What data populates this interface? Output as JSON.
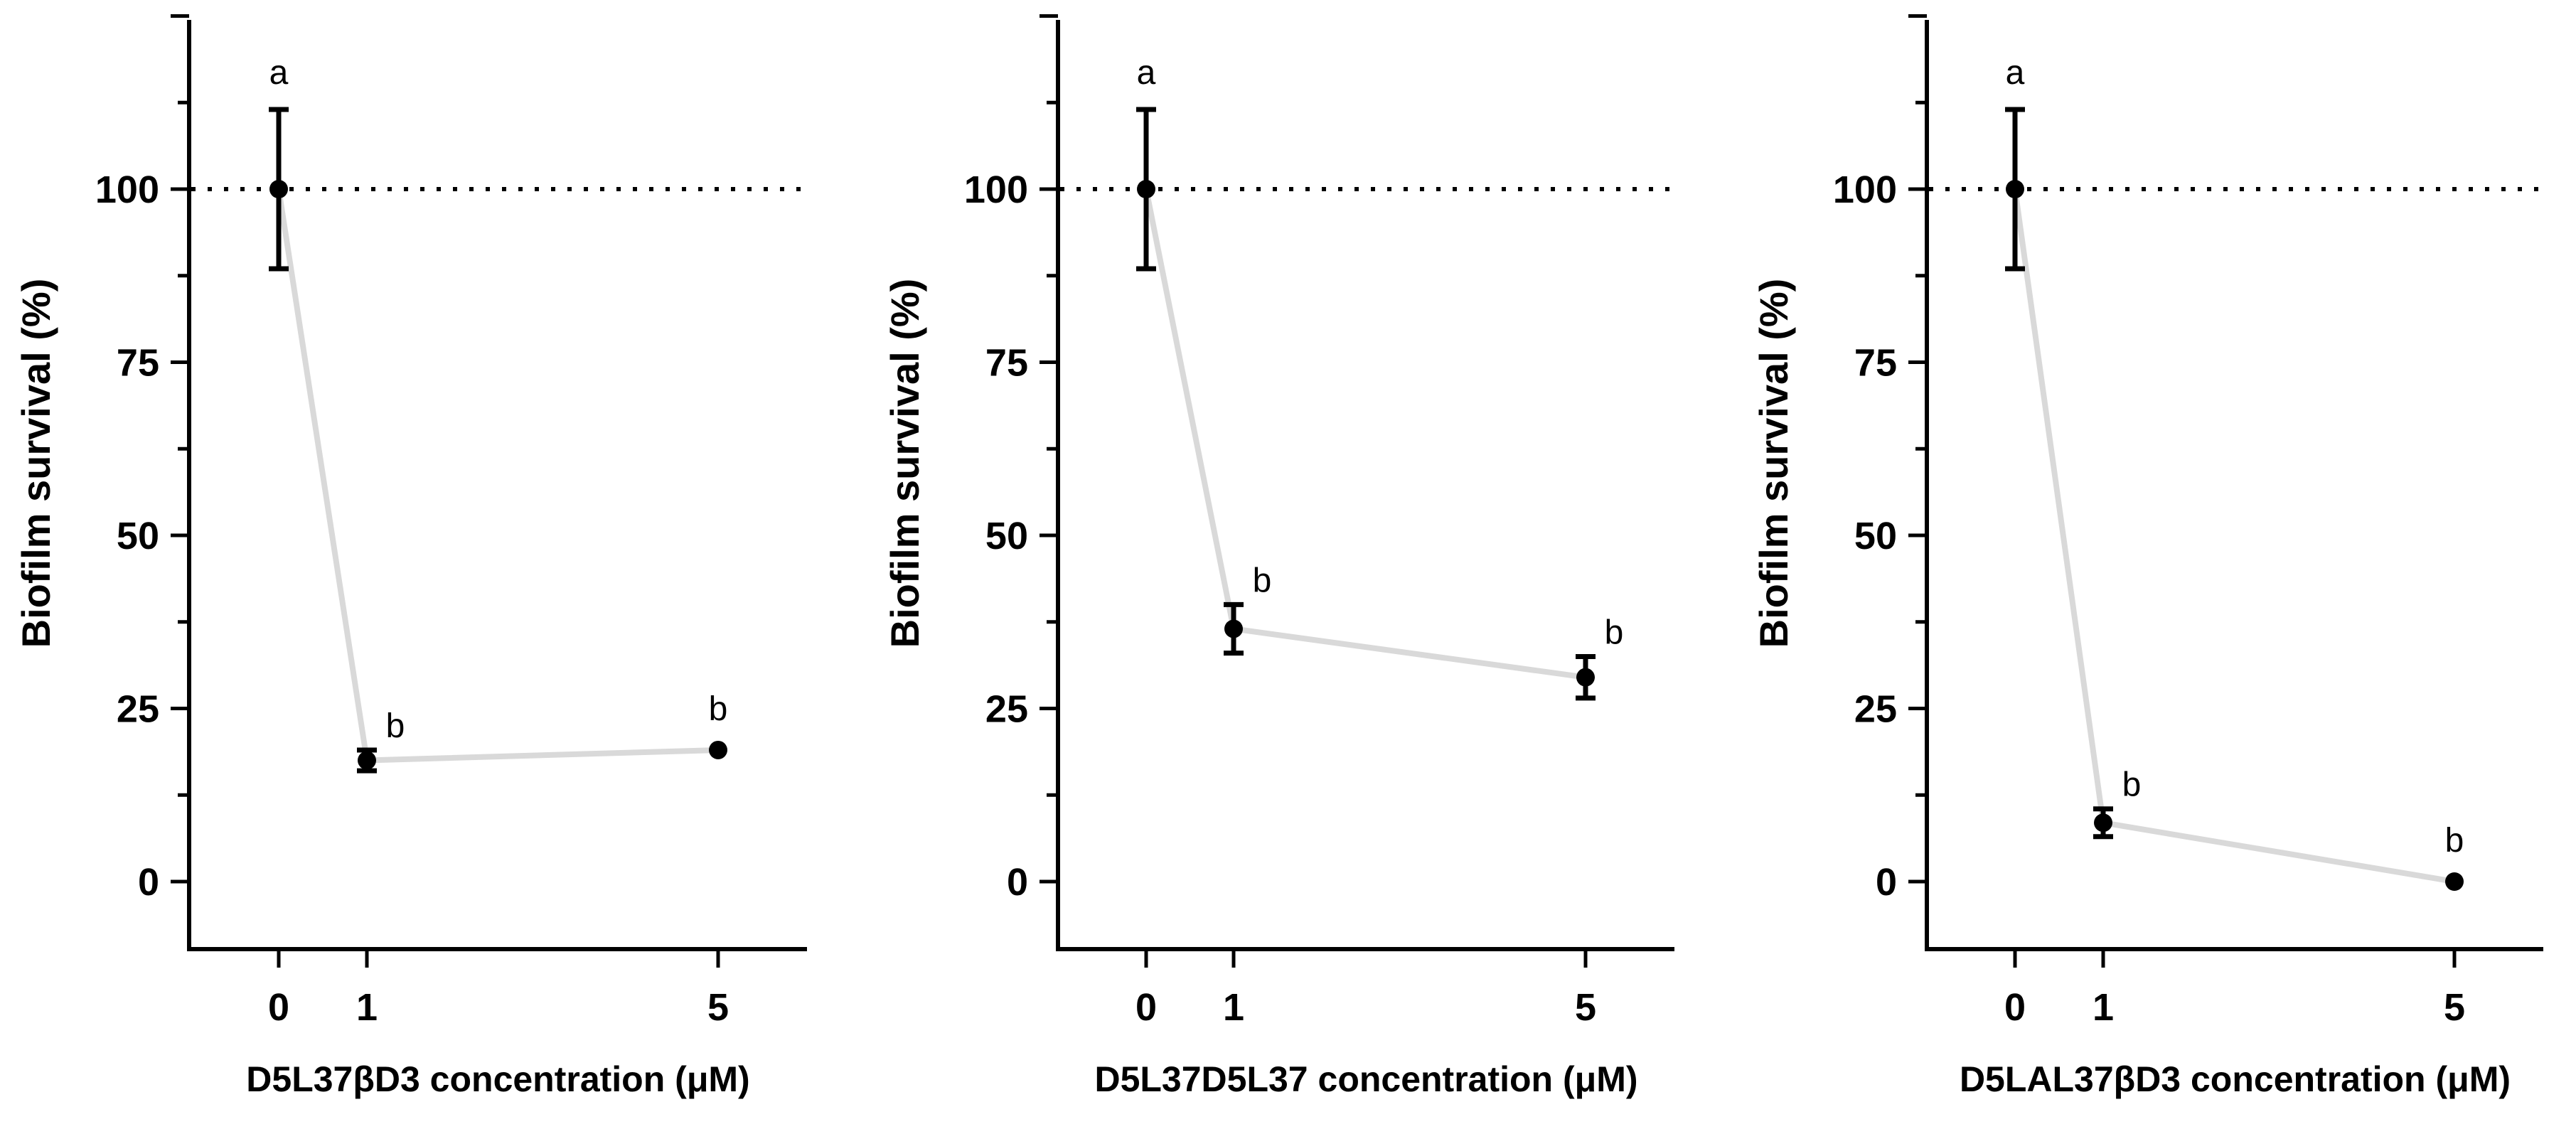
{
  "chart_data": [
    {
      "type": "line",
      "title": "",
      "xlabel": "D5L37βD3 concentration (μM)",
      "ylabel": "Biofilm survival (%)",
      "x": [
        0,
        1,
        5
      ],
      "x_tick_labels": [
        "0",
        "1",
        "5"
      ],
      "y_ticks": [
        0,
        25,
        50,
        75,
        100
      ],
      "y_tick_labels": [
        "0",
        "25",
        "50",
        "75",
        "100"
      ],
      "xlim": [
        -1,
        6
      ],
      "ylim": [
        -10,
        125
      ],
      "reference_line": 100,
      "series": [
        {
          "name": "D5L37βD3",
          "values": [
            100,
            17.5,
            19
          ],
          "errors": [
            11.5,
            1.5,
            0
          ],
          "significance": [
            "a",
            "b",
            "b"
          ]
        }
      ]
    },
    {
      "type": "line",
      "title": "",
      "xlabel": "D5L37D5L37 concentration (μM)",
      "ylabel": "Biofilm survival (%)",
      "x": [
        0,
        1,
        5
      ],
      "x_tick_labels": [
        "0",
        "1",
        "5"
      ],
      "y_ticks": [
        0,
        25,
        50,
        75,
        100
      ],
      "y_tick_labels": [
        "0",
        "25",
        "50",
        "75",
        "100"
      ],
      "xlim": [
        -1,
        6
      ],
      "ylim": [
        -10,
        125
      ],
      "reference_line": 100,
      "series": [
        {
          "name": "D5L37D5L37",
          "values": [
            100,
            36.5,
            29.5
          ],
          "errors": [
            11.5,
            3.5,
            3
          ],
          "significance": [
            "a",
            "b",
            "b"
          ]
        }
      ]
    },
    {
      "type": "line",
      "title": "",
      "xlabel": "D5LAL37βD3 concentration (μM)",
      "ylabel": "Biofilm survival (%)",
      "x": [
        0,
        1,
        5
      ],
      "x_tick_labels": [
        "0",
        "1",
        "5"
      ],
      "y_ticks": [
        0,
        25,
        50,
        75,
        100
      ],
      "y_tick_labels": [
        "0",
        "25",
        "50",
        "75",
        "100"
      ],
      "xlim": [
        -1,
        6
      ],
      "ylim": [
        -10,
        125
      ],
      "reference_line": 100,
      "series": [
        {
          "name": "D5LAL37βD3",
          "values": [
            100,
            8.5,
            0
          ],
          "errors": [
            11.5,
            2,
            0
          ],
          "significance": [
            "a",
            "b",
            "b"
          ]
        }
      ]
    }
  ],
  "style": {
    "line_color": "#d9d9d9",
    "marker_color": "#000000",
    "axis_color": "#000000",
    "reference_line_color": "#000000"
  }
}
